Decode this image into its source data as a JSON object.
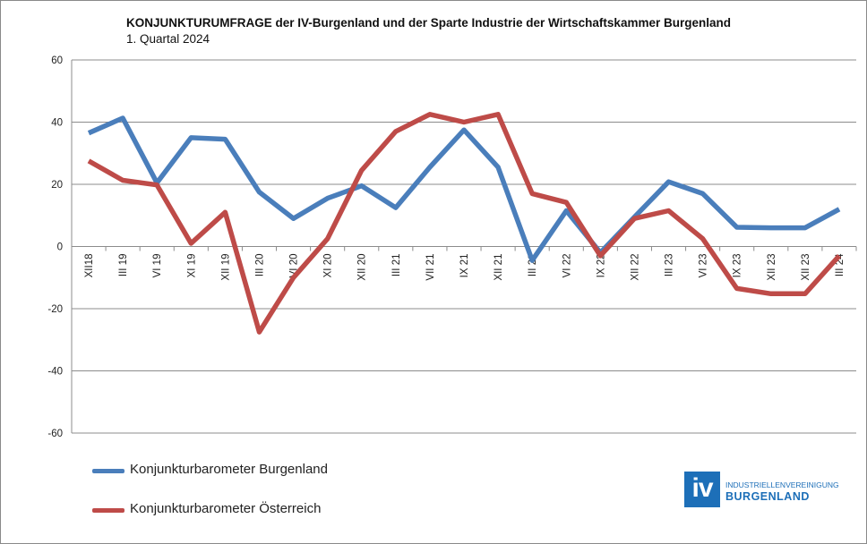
{
  "header": {
    "title": "KONJUNKTURUMFRAGE der IV-Burgenland und der Sparte Industrie der Wirtschaftskammer Burgenland",
    "subtitle": "1. Quartal 2024"
  },
  "logo": {
    "mark": "iv",
    "line1": "INDUSTRIELLENVEREINIGUNG",
    "line2": "BURGENLAND"
  },
  "chart_data": {
    "type": "line",
    "title": "KONJUNKTURUMFRAGE der IV-Burgenland und der Sparte Industrie der Wirtschaftskammer Burgenland",
    "subtitle": "1. Quartal 2024",
    "xlabel": "",
    "ylabel": "",
    "ylim": [
      -60,
      60
    ],
    "yticks": [
      60,
      40,
      20,
      0,
      -20,
      -40,
      -60
    ],
    "grid": true,
    "legend_position": "bottom-left",
    "categories": [
      "XII18",
      "III 19",
      "VI 19",
      "XI 19",
      "XII 19",
      "III 20",
      "VI 20",
      "XI 20",
      "XII 20",
      "III 21",
      "VII 21",
      "IX 21",
      "XII 21",
      "III 22",
      "VI 22",
      "IX 22",
      "XII 22",
      "III 23",
      "VI 23",
      "IX 23",
      "XII 23",
      "XII 23",
      "III 24"
    ],
    "series": [
      {
        "name": "Konjunkturbarometer Burgenland",
        "color": "#4a7ebb",
        "values": [
          36.5,
          41.3,
          20.5,
          35,
          34.5,
          17.5,
          9,
          15.5,
          19.5,
          12.5,
          25.5,
          37.5,
          25.5,
          -4.5,
          11.5,
          -2,
          9.5,
          20.8,
          17,
          6.2,
          6,
          6,
          12
        ]
      },
      {
        "name": "Konjunkturbarometer Österreich",
        "color": "#be4b48",
        "values": [
          27.5,
          21.3,
          19.8,
          1,
          11,
          -27.5,
          -10,
          2.5,
          24.5,
          37,
          42.5,
          40,
          42.5,
          17,
          14.2,
          -3,
          9,
          11.5,
          2.5,
          -13.5,
          -15.2,
          -15.2,
          -3
        ]
      }
    ]
  }
}
